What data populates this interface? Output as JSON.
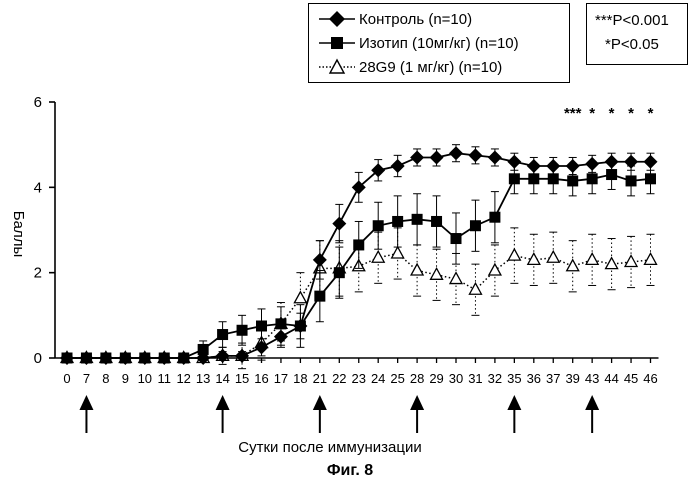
{
  "chart_data": {
    "type": "line",
    "title": "",
    "xlabel": "Сутки после иммунизации",
    "ylabel": "Баллы",
    "ylim": [
      0,
      6
    ],
    "yticks": [
      "0",
      "2",
      "4",
      "6"
    ],
    "categories": [
      "0",
      "7",
      "8",
      "9",
      "10",
      "11",
      "12",
      "13",
      "14",
      "15",
      "16",
      "17",
      "18",
      "21",
      "22",
      "23",
      "24",
      "25",
      "28",
      "29",
      "30",
      "31",
      "32",
      "35",
      "36",
      "37",
      "39",
      "43",
      "44",
      "45",
      "46"
    ],
    "arrow_days": [
      "7",
      "14",
      "21",
      "28",
      "35",
      "43"
    ],
    "significance": [
      {
        "day": "39",
        "label": "***"
      },
      {
        "day": "43",
        "label": "*"
      },
      {
        "day": "44",
        "label": "*"
      },
      {
        "day": "45",
        "label": "*"
      },
      {
        "day": "46",
        "label": "*"
      }
    ],
    "series": [
      {
        "name": "Контроль (n=10)",
        "marker": "diamond",
        "values": [
          0,
          0,
          0,
          0,
          0,
          0,
          0,
          0,
          0.05,
          0.05,
          0.25,
          0.5,
          0.75,
          2.3,
          3.15,
          4.0,
          4.4,
          4.5,
          4.7,
          4.7,
          4.8,
          4.75,
          4.7,
          4.6,
          4.5,
          4.5,
          4.5,
          4.55,
          4.6,
          4.6,
          4.6
        ],
        "errors": [
          0,
          0,
          0,
          0,
          0,
          0,
          0,
          0,
          0.1,
          0.1,
          0.2,
          0.25,
          0.3,
          0.45,
          0.45,
          0.35,
          0.25,
          0.25,
          0.2,
          0.2,
          0.2,
          0.2,
          0.2,
          0.2,
          0.2,
          0.2,
          0.2,
          0.2,
          0.2,
          0.2,
          0.2
        ]
      },
      {
        "name": "Изотип (10мг/кг) (n=10)",
        "marker": "square",
        "values": [
          0,
          0,
          0,
          0,
          0,
          0,
          0,
          0.2,
          0.55,
          0.65,
          0.75,
          0.8,
          0.75,
          1.45,
          2.0,
          2.65,
          3.1,
          3.2,
          3.25,
          3.2,
          2.8,
          3.1,
          3.3,
          4.2,
          4.2,
          4.2,
          4.15,
          4.2,
          4.3,
          4.15,
          4.2
        ],
        "errors": [
          0,
          0,
          0,
          0,
          0,
          0,
          0,
          0.2,
          0.3,
          0.35,
          0.4,
          0.4,
          0.5,
          0.6,
          0.6,
          0.55,
          0.55,
          0.6,
          0.6,
          0.6,
          0.6,
          0.6,
          0.6,
          0.35,
          0.35,
          0.35,
          0.35,
          0.35,
          0.35,
          0.35,
          0.35
        ]
      },
      {
        "name": "28G9 (1 мг/кг) (n=10)",
        "marker": "triangle",
        "values": [
          0,
          0,
          0,
          0,
          0,
          0,
          0,
          0,
          0.05,
          0.05,
          0.35,
          0.8,
          1.4,
          2.1,
          2.1,
          2.15,
          2.35,
          2.45,
          2.05,
          1.95,
          1.85,
          1.6,
          2.05,
          2.4,
          2.3,
          2.35,
          2.15,
          2.3,
          2.2,
          2.25,
          2.3
        ],
        "errors": [
          0,
          0,
          0,
          0,
          0,
          0,
          0,
          0,
          0.2,
          0.3,
          0.4,
          0.5,
          0.6,
          0.65,
          0.65,
          0.6,
          0.6,
          0.6,
          0.6,
          0.6,
          0.6,
          0.6,
          0.6,
          0.65,
          0.6,
          0.6,
          0.6,
          0.6,
          0.6,
          0.6,
          0.6
        ]
      }
    ]
  },
  "p_values": [
    "***P<0.001",
    "*P<0.05"
  ],
  "figure_caption": "Фиг. 8"
}
